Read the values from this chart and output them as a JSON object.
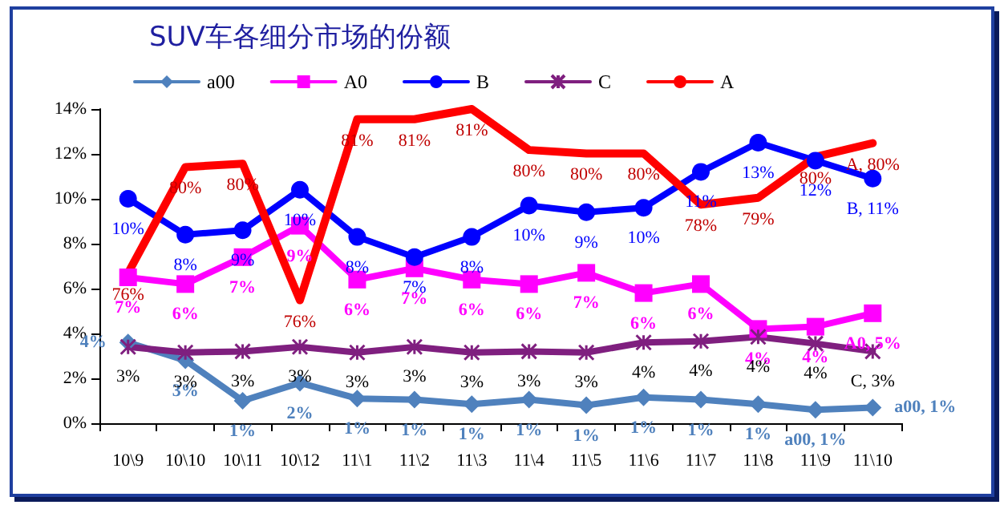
{
  "chart_data": {
    "type": "line",
    "title": "SUV车各细分市场的份额",
    "categories": [
      "10\\9",
      "10\\10",
      "10\\11",
      "10\\12",
      "11\\1",
      "11\\2",
      "11\\3",
      "11\\4",
      "11\\5",
      "11\\6",
      "11\\7",
      "11\\8",
      "11\\9",
      "11\\10"
    ],
    "ylim": [
      0,
      14
    ],
    "yticks": [
      {
        "value": 0,
        "label": "0%"
      },
      {
        "value": 2,
        "label": "2%"
      },
      {
        "value": 4,
        "label": "4%"
      },
      {
        "value": 6,
        "label": "6%"
      },
      {
        "value": 8,
        "label": "8%"
      },
      {
        "value": 10,
        "label": "10%"
      },
      {
        "value": 12,
        "label": "12%"
      },
      {
        "value": 14,
        "label": "14%"
      }
    ],
    "y2lim": [
      72,
      81.2
    ],
    "tick_labels": "xy",
    "legend": "top left",
    "grid": false,
    "series": [
      {
        "name": "a00",
        "color": "#4f81bd",
        "marker": "diamond",
        "values": [
          3.6,
          2.8,
          1.0,
          1.8,
          1.1,
          1.05,
          0.85,
          1.05,
          0.8,
          1.15,
          1.05,
          0.85,
          0.6,
          0.7
        ],
        "value_labels": [
          "4%",
          "3%",
          "1%",
          "2%",
          "1%",
          "1%",
          "1%",
          "1%",
          "1%",
          "1%",
          "1%",
          "1%",
          "a00, 1%",
          "a00, 1%"
        ]
      },
      {
        "name": "A0",
        "color": "#ff00ff",
        "marker": "square",
        "values": [
          6.5,
          6.2,
          7.4,
          8.8,
          6.4,
          6.9,
          6.4,
          6.2,
          6.7,
          5.8,
          6.2,
          4.2,
          4.3,
          4.9
        ],
        "value_labels": [
          "7%",
          "6%",
          "7%",
          "9%",
          "6%",
          "7%",
          "6%",
          "6%",
          "7%",
          "6%",
          "6%",
          "4%",
          "4%",
          "A0, 5%"
        ]
      },
      {
        "name": "B",
        "color": "#0000ff",
        "marker": "circle",
        "values": [
          10.0,
          8.4,
          8.6,
          10.4,
          8.3,
          7.4,
          8.3,
          9.7,
          9.4,
          9.6,
          11.2,
          12.5,
          11.7,
          10.9
        ],
        "value_labels": [
          "10%",
          "8%",
          "9%",
          "10%",
          "8%",
          "7%",
          "8%",
          "10%",
          "9%",
          "10%",
          "11%",
          "13%",
          "12%",
          "B, 11%"
        ]
      },
      {
        "name": "C",
        "color": "#7f1f7f",
        "marker": "cross",
        "values": [
          3.4,
          3.15,
          3.2,
          3.4,
          3.15,
          3.4,
          3.15,
          3.2,
          3.15,
          3.6,
          3.65,
          3.85,
          3.55,
          3.2
        ],
        "value_labels": [
          "3%",
          "3%",
          "3%",
          "3%",
          "3%",
          "3%",
          "3%",
          "3%",
          "3%",
          "4%",
          "4%",
          "4%",
          "4%",
          "C, 3%"
        ]
      },
      {
        "name": "A",
        "color": "#ff0000",
        "marker": "none",
        "axis": "y2",
        "values": [
          76.4,
          79.5,
          79.6,
          75.6,
          80.9,
          80.9,
          81.2,
          80.0,
          79.9,
          79.9,
          78.4,
          78.6,
          79.8,
          80.2
        ],
        "value_labels": [
          "76%",
          "80%",
          "80%",
          "76%",
          "81%",
          "81%",
          "81%",
          "80%",
          "80%",
          "80%",
          "78%",
          "79%",
          "80%",
          "A, 80%"
        ]
      }
    ]
  }
}
